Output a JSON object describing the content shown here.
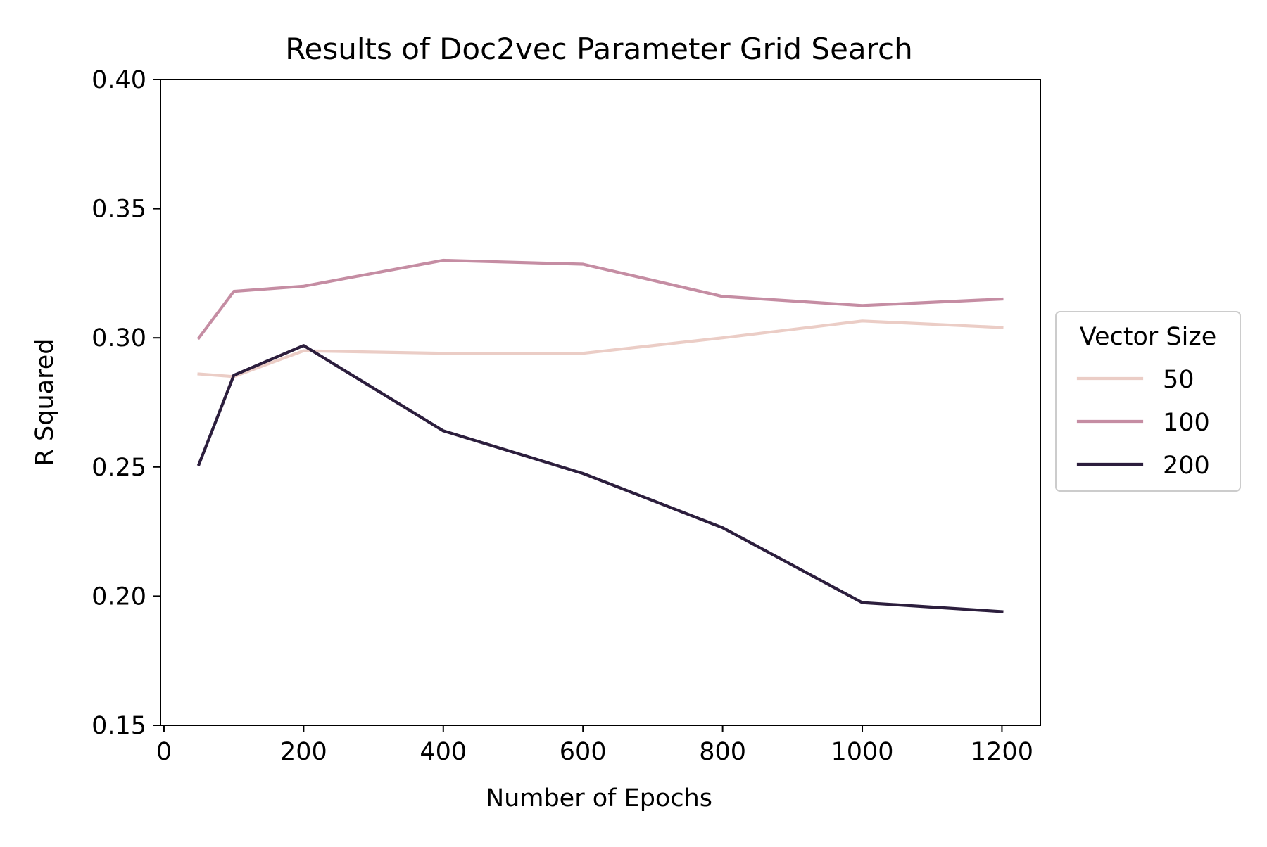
{
  "chart_data": {
    "type": "line",
    "title": "Results of Doc2vec Parameter Grid Search",
    "xlabel": "Number of Epochs",
    "ylabel": "R Squared",
    "xlim": [
      -5,
      1255
    ],
    "ylim": [
      0.15,
      0.4
    ],
    "xticks": [
      0,
      200,
      400,
      600,
      800,
      1000,
      1200
    ],
    "xtick_labels": [
      "0",
      "200",
      "400",
      "600",
      "800",
      "1000",
      "1200"
    ],
    "yticks": [
      0.15,
      0.2,
      0.25,
      0.3,
      0.35,
      0.4
    ],
    "ytick_labels": [
      "0.15",
      "0.20",
      "0.25",
      "0.30",
      "0.35",
      "0.40"
    ],
    "grid": false,
    "legend": {
      "title": "Vector Size",
      "placement": "outside-right"
    },
    "x": [
      50,
      100,
      200,
      400,
      600,
      800,
      1000,
      1200
    ],
    "series": [
      {
        "name": "50",
        "color": "#ebcdc6",
        "values": [
          0.286,
          0.285,
          0.295,
          0.294,
          0.294,
          0.3,
          0.3065,
          0.304
        ]
      },
      {
        "name": "100",
        "color": "#c58da3",
        "values": [
          0.3,
          0.318,
          0.32,
          0.33,
          0.3285,
          0.316,
          0.3125,
          0.315
        ]
      },
      {
        "name": "200",
        "color": "#2c1e3d",
        "values": [
          0.251,
          0.2855,
          0.297,
          0.264,
          0.2475,
          0.2265,
          0.1975,
          0.194
        ]
      }
    ]
  }
}
